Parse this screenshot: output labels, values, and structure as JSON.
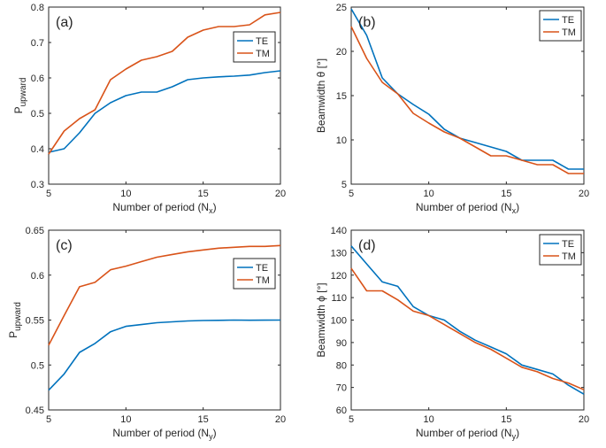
{
  "chart_data": [
    {
      "id": "a",
      "type": "line",
      "panel_label": "(a)",
      "xlabel_main": "Number of period (N",
      "xlabel_sub": "x",
      "xlabel_end": ")",
      "ylabel_main": "P",
      "ylabel_sub": "upward",
      "xlim": [
        5,
        20
      ],
      "ylim": [
        0.3,
        0.8
      ],
      "xticks": [
        5,
        10,
        15,
        20
      ],
      "xtick_labels": [
        "5",
        "10",
        "15",
        "20"
      ],
      "yticks": [
        0.3,
        0.4,
        0.5,
        0.6,
        0.7,
        0.8
      ],
      "ytick_labels": [
        "0.3",
        "0.4",
        "0.5",
        "0.6",
        "0.7",
        "0.8"
      ],
      "legend_position": "center-right",
      "series": [
        {
          "name": "TE",
          "color": "#0072BD",
          "x": [
            5,
            6,
            7,
            8,
            9,
            10,
            11,
            12,
            13,
            14,
            15,
            16,
            17,
            18,
            19,
            20
          ],
          "y": [
            0.39,
            0.4,
            0.445,
            0.5,
            0.53,
            0.55,
            0.56,
            0.56,
            0.575,
            0.595,
            0.6,
            0.603,
            0.605,
            0.608,
            0.615,
            0.62
          ]
        },
        {
          "name": "TM",
          "color": "#D95319",
          "x": [
            5,
            6,
            7,
            8,
            9,
            10,
            11,
            12,
            13,
            14,
            15,
            16,
            17,
            18,
            19,
            20
          ],
          "y": [
            0.385,
            0.45,
            0.485,
            0.51,
            0.595,
            0.625,
            0.65,
            0.66,
            0.675,
            0.715,
            0.735,
            0.745,
            0.745,
            0.75,
            0.778,
            0.785
          ]
        }
      ]
    },
    {
      "id": "b",
      "type": "line",
      "panel_label": "(b)",
      "xlabel_main": "Number of period (N",
      "xlabel_sub": "x",
      "xlabel_end": ")",
      "ylabel_main": "Beamwidth θ [°]",
      "ylabel_sub": "",
      "xlim": [
        5,
        20
      ],
      "ylim": [
        5,
        25
      ],
      "xticks": [
        5,
        10,
        15,
        20
      ],
      "xtick_labels": [
        "5",
        "10",
        "15",
        "20"
      ],
      "yticks": [
        5,
        10,
        15,
        20,
        25
      ],
      "ytick_labels": [
        "5",
        "10",
        "15",
        "20",
        "25"
      ],
      "legend_position": "top-right",
      "series": [
        {
          "name": "TE",
          "color": "#0072BD",
          "x": [
            5,
            6,
            7,
            8,
            9,
            10,
            11,
            12,
            13,
            14,
            15,
            16,
            17,
            18,
            19,
            20
          ],
          "y": [
            24.8,
            21.8,
            17.0,
            15.2,
            14.0,
            12.9,
            11.2,
            10.2,
            9.7,
            9.2,
            8.7,
            7.7,
            7.7,
            7.7,
            6.7,
            6.7
          ]
        },
        {
          "name": "TM",
          "color": "#D95319",
          "x": [
            5,
            6,
            7,
            8,
            9,
            10,
            11,
            12,
            13,
            14,
            15,
            16,
            17,
            18,
            19,
            20
          ],
          "y": [
            22.8,
            19.2,
            16.5,
            15.2,
            13.0,
            11.9,
            10.9,
            10.2,
            9.2,
            8.2,
            8.2,
            7.7,
            7.2,
            7.2,
            6.2,
            6.2
          ]
        }
      ]
    },
    {
      "id": "c",
      "type": "line",
      "panel_label": "(c)",
      "xlabel_main": "Number of period (N",
      "xlabel_sub": "y",
      "xlabel_end": ")",
      "ylabel_main": "P",
      "ylabel_sub": "upward",
      "xlim": [
        5,
        20
      ],
      "ylim": [
        0.45,
        0.65
      ],
      "xticks": [
        5,
        10,
        15,
        20
      ],
      "xtick_labels": [
        "5",
        "10",
        "15",
        "20"
      ],
      "yticks": [
        0.45,
        0.5,
        0.55,
        0.6,
        0.65
      ],
      "ytick_labels": [
        "0.45",
        "0.5",
        "0.55",
        "0.6",
        "0.65"
      ],
      "legend_position": "center-right",
      "series": [
        {
          "name": "TE",
          "color": "#0072BD",
          "x": [
            5,
            6,
            7,
            8,
            9,
            10,
            11,
            12,
            13,
            14,
            15,
            16,
            17,
            18,
            19,
            20
          ],
          "y": [
            0.472,
            0.49,
            0.514,
            0.524,
            0.537,
            0.543,
            0.545,
            0.547,
            0.548,
            0.549,
            0.5495,
            0.5497,
            0.55,
            0.5498,
            0.5499,
            0.55
          ]
        },
        {
          "name": "TM",
          "color": "#D95319",
          "x": [
            5,
            6,
            7,
            8,
            9,
            10,
            11,
            12,
            13,
            14,
            15,
            16,
            17,
            18,
            19,
            20
          ],
          "y": [
            0.522,
            0.555,
            0.587,
            0.592,
            0.606,
            0.61,
            0.615,
            0.62,
            0.623,
            0.626,
            0.628,
            0.63,
            0.631,
            0.632,
            0.632,
            0.633
          ]
        }
      ]
    },
    {
      "id": "d",
      "type": "line",
      "panel_label": "(d)",
      "xlabel_main": "Number of period (N",
      "xlabel_sub": "y",
      "xlabel_end": ")",
      "ylabel_main": "Beamwidth ϕ [°]",
      "ylabel_sub": "",
      "xlim": [
        5,
        20
      ],
      "ylim": [
        60,
        140
      ],
      "xticks": [
        5,
        10,
        15,
        20
      ],
      "xtick_labels": [
        "5",
        "10",
        "15",
        "20"
      ],
      "yticks": [
        60,
        70,
        80,
        90,
        100,
        110,
        120,
        130,
        140
      ],
      "ytick_labels": [
        "60",
        "70",
        "80",
        "90",
        "100",
        "110",
        "120",
        "130",
        "140"
      ],
      "legend_position": "top-right",
      "series": [
        {
          "name": "TE",
          "color": "#0072BD",
          "x": [
            5,
            6,
            7,
            8,
            9,
            10,
            11,
            12,
            13,
            14,
            15,
            16,
            17,
            18,
            19,
            20
          ],
          "y": [
            133,
            125,
            117,
            115,
            106,
            102,
            100,
            95,
            91,
            88,
            85,
            80,
            78,
            76,
            71,
            67
          ]
        },
        {
          "name": "TM",
          "color": "#D95319",
          "x": [
            5,
            6,
            7,
            8,
            9,
            10,
            11,
            12,
            13,
            14,
            15,
            16,
            17,
            18,
            19,
            20
          ],
          "y": [
            123,
            113,
            113,
            109,
            104,
            102,
            98,
            94,
            90,
            87,
            83,
            79,
            77,
            74,
            72,
            69
          ]
        }
      ]
    }
  ]
}
